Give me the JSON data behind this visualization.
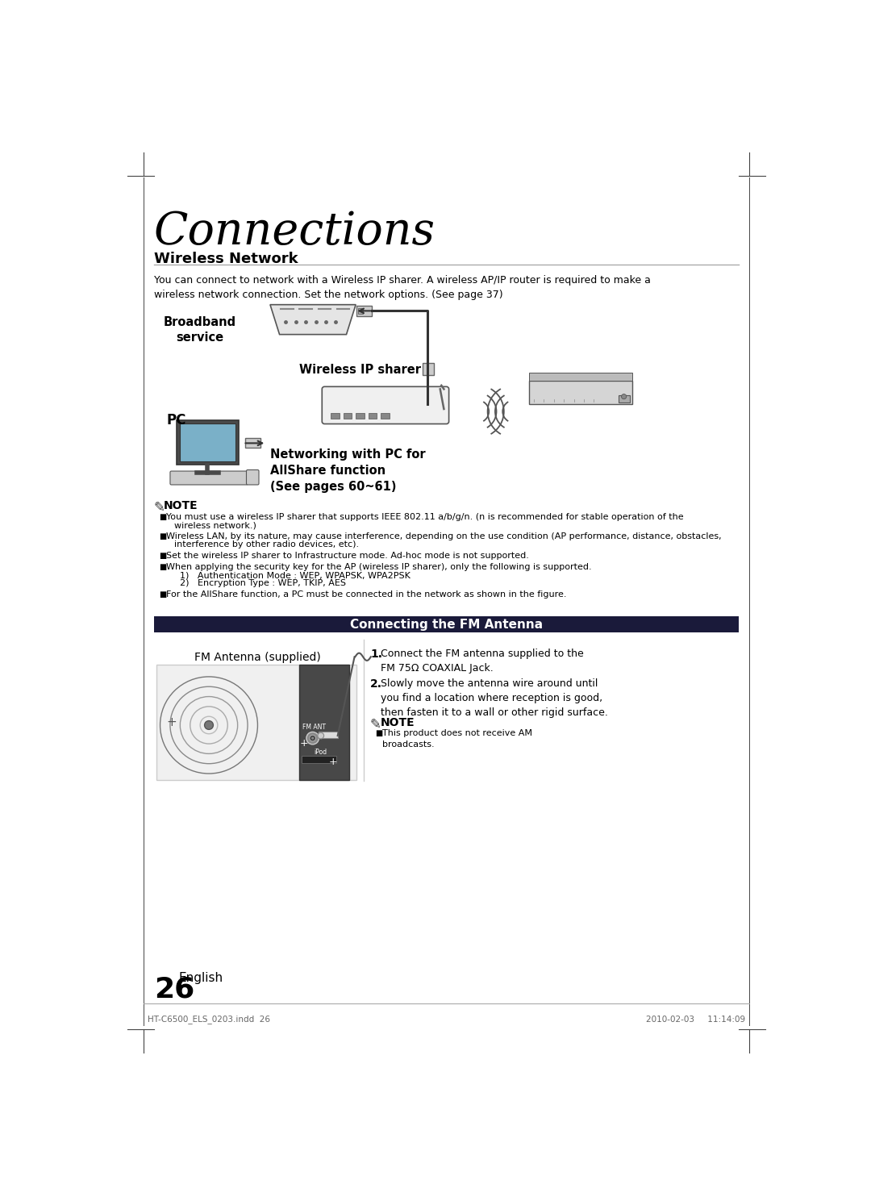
{
  "page_title": "Connections",
  "section1_title": "Wireless Network",
  "section1_body": "You can connect to network with a Wireless IP sharer. A wireless AP/IP router is required to make a\nwireless network connection. Set the network options. (See page 37)",
  "label_broadband": "Broadband\nservice",
  "label_wireless_ip": "Wireless IP sharer",
  "label_pc": "PC",
  "label_networking": "Networking with PC for\nAllShare function\n(See pages 60~61)",
  "note_header": "NOTE",
  "note_items": [
    "You must use a wireless IP sharer that supports IEEE 802.11 a/b/g/n. (n is recommended for stable operation of the\nwireless network.)",
    "Wireless LAN, by its nature, may cause interference, depending on the use condition (AP performance, distance, obstacles,\ninterference by other radio devices, etc).",
    "Set the wireless IP sharer to Infrastructure mode. Ad-hoc mode is not supported.",
    "When applying the security key for the AP (wireless IP sharer), only the following is supported.\n  1)   Authentication Mode : WEP, WPAPSK, WPA2PSK\n  2)   Encryption Type : WEP, TKIP, AES",
    "For the AllShare function, a PC must be connected in the network as shown in the figure."
  ],
  "section2_title": "Connecting the FM Antenna",
  "fm_label": "FM Antenna (supplied)",
  "step1": "Connect the FM antenna supplied to the\nFM 75Ω COAXIAL Jack.",
  "step2": "Slowly move the antenna wire around until\nyou find a location where reception is good,\nthen fasten it to a wall or other rigid surface.",
  "note2_header": "NOTE",
  "note2_items": [
    "This product does not receive AM\nbroadcasts."
  ],
  "page_number": "26",
  "page_label": "English",
  "footer_left": "HT-C6500_ELS_0203.indd  26",
  "footer_right": "2010-02-03     11:14:09",
  "bg_color": "#ffffff",
  "text_color": "#000000",
  "section2_header_bg": "#1a1a3a",
  "section2_header_color": "#ffffff",
  "line_color": "#888888"
}
